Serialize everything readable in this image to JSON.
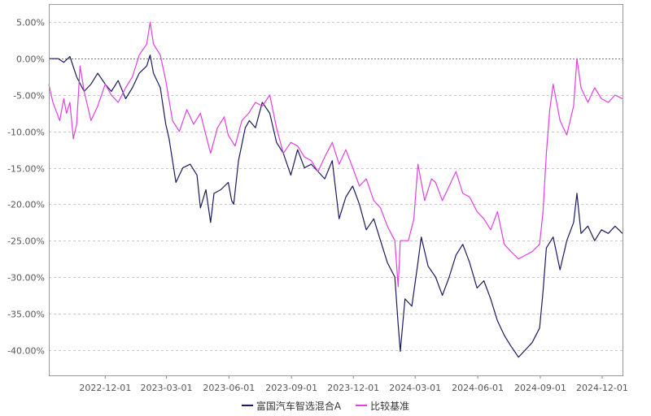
{
  "chart_data": {
    "type": "line",
    "title": "",
    "xlabel": "",
    "ylabel": "",
    "x_ticks": [
      "2022-12-01",
      "2023-03-01",
      "2023-06-01",
      "2023-09-01",
      "2023-12-01",
      "2024-03-01",
      "2024-06-01",
      "2024-09-01",
      "2024-12-01"
    ],
    "y_ticks": [
      "5.00%",
      "0.00%",
      "-5.00%",
      "-10.00%",
      "-15.00%",
      "-20.00%",
      "-25.00%",
      "-30.00%",
      "-35.00%",
      "-40.00%"
    ],
    "y_tick_values": [
      5,
      0,
      -5,
      -10,
      -15,
      -20,
      -25,
      -30,
      -35,
      -40
    ],
    "xlim": [
      "2022-09-09",
      "2024-12-31"
    ],
    "ylim": [
      -43.5,
      7.5
    ],
    "grid": true,
    "legend_position": "bottom",
    "series": [
      {
        "name": "富国汽车智选混合A",
        "color": "#1a1a5e",
        "points": [
          [
            "2022-09-09",
            0.0
          ],
          [
            "2022-09-23",
            0.0
          ],
          [
            "2022-10-01",
            -0.5
          ],
          [
            "2022-10-10",
            0.3
          ],
          [
            "2022-10-20",
            -2.5
          ],
          [
            "2022-10-31",
            -4.5
          ],
          [
            "2022-11-10",
            -3.5
          ],
          [
            "2022-11-20",
            -2.0
          ],
          [
            "2022-12-01",
            -3.5
          ],
          [
            "2022-12-10",
            -4.5
          ],
          [
            "2022-12-20",
            -3.0
          ],
          [
            "2022-12-31",
            -5.5
          ],
          [
            "2023-01-10",
            -4.0
          ],
          [
            "2023-01-20",
            -2.0
          ],
          [
            "2023-01-31",
            -1.0
          ],
          [
            "2023-02-05",
            0.5
          ],
          [
            "2023-02-10",
            -2.0
          ],
          [
            "2023-02-20",
            -4.0
          ],
          [
            "2023-02-28",
            -9.0
          ],
          [
            "2023-03-05",
            -11.0
          ],
          [
            "2023-03-10",
            -14.0
          ],
          [
            "2023-03-15",
            -17.0
          ],
          [
            "2023-03-25",
            -15.0
          ],
          [
            "2023-04-05",
            -14.5
          ],
          [
            "2023-04-15",
            -16.0
          ],
          [
            "2023-04-20",
            -20.5
          ],
          [
            "2023-04-28",
            -18.0
          ],
          [
            "2023-05-05",
            -22.5
          ],
          [
            "2023-05-10",
            -18.5
          ],
          [
            "2023-05-20",
            -18.0
          ],
          [
            "2023-05-31",
            -17.0
          ],
          [
            "2023-06-05",
            -19.5
          ],
          [
            "2023-06-08",
            -20.0
          ],
          [
            "2023-06-15",
            -14.0
          ],
          [
            "2023-06-25",
            -9.5
          ],
          [
            "2023-07-01",
            -8.5
          ],
          [
            "2023-07-10",
            -9.5
          ],
          [
            "2023-07-20",
            -6.0
          ],
          [
            "2023-07-31",
            -7.5
          ],
          [
            "2023-08-10",
            -11.5
          ],
          [
            "2023-08-20",
            -13.0
          ],
          [
            "2023-08-31",
            -16.0
          ],
          [
            "2023-09-10",
            -12.5
          ],
          [
            "2023-09-20",
            -15.0
          ],
          [
            "2023-09-30",
            -14.5
          ],
          [
            "2023-10-10",
            -15.5
          ],
          [
            "2023-10-20",
            -16.5
          ],
          [
            "2023-10-31",
            -14.0
          ],
          [
            "2023-11-10",
            -22.0
          ],
          [
            "2023-11-20",
            -19.0
          ],
          [
            "2023-11-30",
            -17.5
          ],
          [
            "2023-12-10",
            -20.0
          ],
          [
            "2023-12-20",
            -23.5
          ],
          [
            "2023-12-31",
            -22.0
          ],
          [
            "2024-01-10",
            -25.0
          ],
          [
            "2024-01-20",
            -28.0
          ],
          [
            "2024-01-31",
            -30.0
          ],
          [
            "2024-02-05",
            -36.5
          ],
          [
            "2024-02-08",
            -40.2
          ],
          [
            "2024-02-15",
            -33.0
          ],
          [
            "2024-02-25",
            -34.0
          ],
          [
            "2024-03-05",
            -28.0
          ],
          [
            "2024-03-10",
            -24.5
          ],
          [
            "2024-03-20",
            -28.5
          ],
          [
            "2024-03-31",
            -30.0
          ],
          [
            "2024-04-10",
            -32.5
          ],
          [
            "2024-04-20",
            -30.0
          ],
          [
            "2024-04-30",
            -27.0
          ],
          [
            "2024-05-10",
            -25.5
          ],
          [
            "2024-05-20",
            -28.0
          ],
          [
            "2024-05-31",
            -31.5
          ],
          [
            "2024-06-10",
            -30.5
          ],
          [
            "2024-06-20",
            -33.0
          ],
          [
            "2024-06-30",
            -36.0
          ],
          [
            "2024-07-10",
            -38.0
          ],
          [
            "2024-07-20",
            -39.5
          ],
          [
            "2024-07-31",
            -41.0
          ],
          [
            "2024-08-10",
            -40.0
          ],
          [
            "2024-08-20",
            -39.0
          ],
          [
            "2024-08-31",
            -37.0
          ],
          [
            "2024-09-05",
            -32.0
          ],
          [
            "2024-09-10",
            -26.0
          ],
          [
            "2024-09-20",
            -24.5
          ],
          [
            "2024-09-30",
            -29.0
          ],
          [
            "2024-10-10",
            -25.0
          ],
          [
            "2024-10-20",
            -22.5
          ],
          [
            "2024-10-25",
            -18.5
          ],
          [
            "2024-10-31",
            -24.0
          ],
          [
            "2024-11-10",
            -23.0
          ],
          [
            "2024-11-20",
            -25.0
          ],
          [
            "2024-11-30",
            -23.5
          ],
          [
            "2024-12-10",
            -24.0
          ],
          [
            "2024-12-20",
            -23.0
          ],
          [
            "2024-12-31",
            -24.0
          ]
        ]
      },
      {
        "name": "比较基准",
        "color": "#e040e0",
        "points": [
          [
            "2022-09-09",
            -3.5
          ],
          [
            "2022-09-15",
            -6.0
          ],
          [
            "2022-09-25",
            -8.5
          ],
          [
            "2022-10-01",
            -5.5
          ],
          [
            "2022-10-05",
            -7.5
          ],
          [
            "2022-10-10",
            -6.0
          ],
          [
            "2022-10-15",
            -11.0
          ],
          [
            "2022-10-20",
            -9.0
          ],
          [
            "2022-10-25",
            -1.0
          ],
          [
            "2022-10-31",
            -4.5
          ],
          [
            "2022-11-10",
            -8.5
          ],
          [
            "2022-11-20",
            -6.5
          ],
          [
            "2022-12-01",
            -3.5
          ],
          [
            "2022-12-10",
            -5.0
          ],
          [
            "2022-12-20",
            -6.0
          ],
          [
            "2022-12-31",
            -4.0
          ],
          [
            "2023-01-10",
            -2.5
          ],
          [
            "2023-01-20",
            0.5
          ],
          [
            "2023-01-31",
            2.0
          ],
          [
            "2023-02-05",
            5.0
          ],
          [
            "2023-02-10",
            2.0
          ],
          [
            "2023-02-20",
            0.5
          ],
          [
            "2023-02-28",
            -3.0
          ],
          [
            "2023-03-10",
            -8.5
          ],
          [
            "2023-03-20",
            -10.0
          ],
          [
            "2023-03-31",
            -7.0
          ],
          [
            "2023-04-10",
            -9.0
          ],
          [
            "2023-04-20",
            -7.5
          ],
          [
            "2023-04-28",
            -10.5
          ],
          [
            "2023-05-05",
            -13.0
          ],
          [
            "2023-05-15",
            -9.5
          ],
          [
            "2023-05-25",
            -8.0
          ],
          [
            "2023-05-31",
            -10.5
          ],
          [
            "2023-06-10",
            -12.0
          ],
          [
            "2023-06-20",
            -8.5
          ],
          [
            "2023-06-30",
            -7.5
          ],
          [
            "2023-07-10",
            -6.0
          ],
          [
            "2023-07-20",
            -6.5
          ],
          [
            "2023-07-31",
            -5.0
          ],
          [
            "2023-08-10",
            -9.5
          ],
          [
            "2023-08-20",
            -13.0
          ],
          [
            "2023-08-31",
            -11.5
          ],
          [
            "2023-09-10",
            -12.0
          ],
          [
            "2023-09-20",
            -13.5
          ],
          [
            "2023-09-30",
            -14.0
          ],
          [
            "2023-10-10",
            -15.5
          ],
          [
            "2023-10-20",
            -13.5
          ],
          [
            "2023-10-31",
            -11.5
          ],
          [
            "2023-11-10",
            -14.5
          ],
          [
            "2023-11-20",
            -12.5
          ],
          [
            "2023-11-30",
            -15.0
          ],
          [
            "2023-12-10",
            -17.5
          ],
          [
            "2023-12-20",
            -16.5
          ],
          [
            "2023-12-31",
            -19.5
          ],
          [
            "2024-01-10",
            -20.5
          ],
          [
            "2024-01-20",
            -23.0
          ],
          [
            "2024-01-31",
            -25.0
          ],
          [
            "2024-02-05",
            -31.3
          ],
          [
            "2024-02-08",
            -25.0
          ],
          [
            "2024-02-20",
            -25.0
          ],
          [
            "2024-02-28",
            -22.0
          ],
          [
            "2024-03-05",
            -14.5
          ],
          [
            "2024-03-15",
            -19.5
          ],
          [
            "2024-03-25",
            -16.5
          ],
          [
            "2024-03-31",
            -17.0
          ],
          [
            "2024-04-10",
            -19.5
          ],
          [
            "2024-04-20",
            -17.5
          ],
          [
            "2024-04-30",
            -15.5
          ],
          [
            "2024-05-10",
            -18.5
          ],
          [
            "2024-05-20",
            -19.0
          ],
          [
            "2024-05-31",
            -21.0
          ],
          [
            "2024-06-10",
            -22.0
          ],
          [
            "2024-06-20",
            -23.5
          ],
          [
            "2024-06-30",
            -21.0
          ],
          [
            "2024-07-10",
            -25.5
          ],
          [
            "2024-07-20",
            -26.5
          ],
          [
            "2024-07-31",
            -27.5
          ],
          [
            "2024-08-10",
            -27.0
          ],
          [
            "2024-08-20",
            -26.5
          ],
          [
            "2024-08-31",
            -25.5
          ],
          [
            "2024-09-05",
            -21.0
          ],
          [
            "2024-09-10",
            -13.0
          ],
          [
            "2024-09-15",
            -7.0
          ],
          [
            "2024-09-20",
            -3.5
          ],
          [
            "2024-09-30",
            -8.5
          ],
          [
            "2024-10-10",
            -10.5
          ],
          [
            "2024-10-20",
            -6.5
          ],
          [
            "2024-10-25",
            0.0
          ],
          [
            "2024-10-31",
            -4.0
          ],
          [
            "2024-11-10",
            -6.0
          ],
          [
            "2024-11-20",
            -4.0
          ],
          [
            "2024-11-30",
            -5.5
          ],
          [
            "2024-12-10",
            -6.0
          ],
          [
            "2024-12-20",
            -5.0
          ],
          [
            "2024-12-31",
            -5.5
          ]
        ]
      }
    ]
  }
}
